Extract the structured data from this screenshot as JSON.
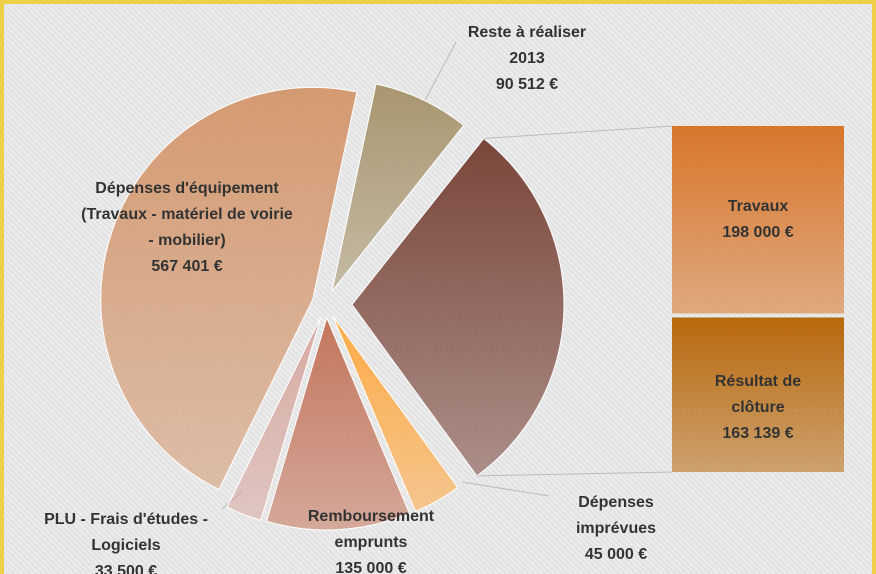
{
  "chart_data": {
    "type": "pie-of-bar",
    "categories": [
      "Dépenses d'équipement\n(Travaux - matériel de voirie\n- mobilier)",
      "Reste à réaliser\n2013",
      "Dépenses\nimprévues",
      "Remboursement\nemprunts",
      "PLU - Frais d'études -\nLogiciels"
    ],
    "values": [
      567401,
      90512,
      45000,
      135000,
      33500
    ],
    "value_labels": [
      "567 401 €",
      "90 512 €",
      "45 000 €",
      "135 000 €",
      "33 500 €"
    ],
    "colors": [
      "#d49a72",
      "#a8966f",
      "#ffaa45",
      "#c4755c",
      "#d8aaa2"
    ],
    "bar": {
      "categories": [
        "Travaux",
        "Résultat de clôture"
      ],
      "values": [
        198000,
        163139
      ],
      "value_labels": [
        "198 000 €",
        "163 139 €"
      ],
      "colors": [
        "#d8762a",
        "#b8680c"
      ],
      "pie_color": "#7a463b"
    }
  }
}
